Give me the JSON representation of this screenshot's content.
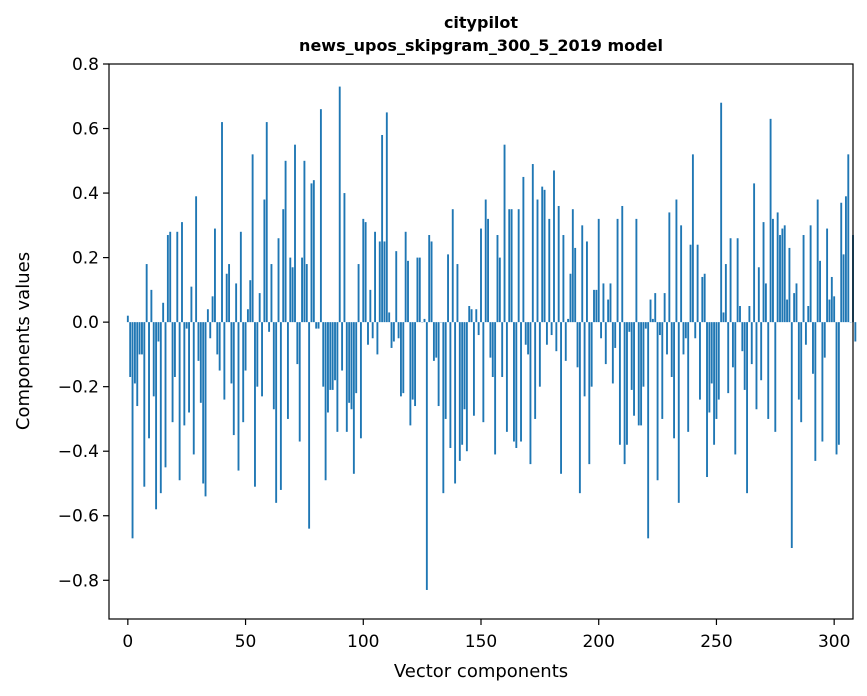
{
  "chart_data": {
    "type": "bar",
    "title": "citypilot",
    "subtitle": "news_upos_skipgram_300_5_2019 model",
    "xlabel": "Vector components",
    "ylabel": "Components values",
    "xlim": [
      -8,
      308
    ],
    "ylim": [
      -0.92,
      0.8
    ],
    "xticks": [
      0,
      50,
      100,
      150,
      200,
      250,
      300
    ],
    "yticks": [
      -0.8,
      -0.6,
      -0.4,
      -0.2,
      0.0,
      0.2,
      0.4,
      0.6,
      0.8
    ],
    "ytick_labels": [
      "−0.8",
      "−0.6",
      "−0.4",
      "−0.2",
      "0.0",
      "0.2",
      "0.4",
      "0.6",
      "0.8"
    ],
    "xtick_labels": [
      "0",
      "50",
      "100",
      "150",
      "200",
      "250",
      "300"
    ],
    "bar_color": "#1f77b4",
    "grid": false,
    "values": [
      0.02,
      -0.17,
      -0.67,
      -0.19,
      -0.26,
      -0.1,
      -0.1,
      -0.51,
      0.18,
      -0.36,
      0.1,
      -0.23,
      -0.58,
      -0.06,
      -0.53,
      0.06,
      -0.45,
      0.27,
      0.28,
      -0.31,
      -0.17,
      0.28,
      -0.49,
      0.31,
      -0.32,
      -0.02,
      -0.28,
      0.11,
      -0.41,
      0.39,
      -0.12,
      -0.25,
      -0.5,
      -0.54,
      0.04,
      -0.05,
      0.08,
      0.29,
      -0.1,
      -0.15,
      0.62,
      -0.24,
      0.15,
      0.18,
      -0.19,
      -0.35,
      0.12,
      -0.46,
      0.28,
      -0.31,
      -0.15,
      0.04,
      0.13,
      0.52,
      -0.51,
      -0.2,
      0.09,
      -0.23,
      0.38,
      0.62,
      -0.03,
      0.18,
      -0.27,
      -0.56,
      0.26,
      -0.52,
      0.35,
      0.5,
      -0.3,
      0.2,
      0.17,
      0.55,
      -0.13,
      -0.37,
      0.2,
      0.5,
      0.18,
      -0.64,
      0.43,
      0.44,
      -0.02,
      -0.02,
      0.66,
      -0.2,
      -0.49,
      -0.28,
      -0.21,
      -0.21,
      -0.18,
      -0.34,
      0.73,
      -0.15,
      0.4,
      -0.34,
      -0.25,
      -0.27,
      -0.47,
      -0.22,
      0.18,
      -0.36,
      0.32,
      0.31,
      -0.07,
      0.1,
      -0.05,
      0.28,
      -0.1,
      0.25,
      0.58,
      0.25,
      0.65,
      0.03,
      -0.08,
      -0.06,
      0.22,
      -0.05,
      -0.23,
      -0.22,
      0.28,
      0.19,
      -0.32,
      -0.24,
      -0.26,
      0.2,
      0.2,
      0.0,
      0.01,
      -0.83,
      0.27,
      0.25,
      -0.12,
      -0.11,
      -0.26,
      0.0,
      -0.53,
      -0.3,
      0.21,
      -0.39,
      0.35,
      -0.5,
      0.18,
      -0.43,
      -0.38,
      -0.27,
      -0.4,
      0.05,
      0.04,
      -0.29,
      0.04,
      -0.04,
      0.29,
      -0.31,
      0.38,
      0.32,
      -0.11,
      -0.17,
      -0.41,
      0.27,
      0.2,
      -0.17,
      0.55,
      -0.34,
      0.35,
      0.35,
      -0.37,
      -0.39,
      0.35,
      -0.37,
      0.45,
      -0.07,
      -0.1,
      -0.44,
      0.49,
      -0.3,
      0.38,
      -0.2,
      0.42,
      0.41,
      -0.07,
      0.32,
      -0.04,
      0.47,
      -0.09,
      0.36,
      -0.47,
      0.27,
      -0.12,
      0.01,
      0.15,
      0.35,
      0.23,
      -0.14,
      -0.53,
      0.3,
      -0.23,
      0.25,
      -0.44,
      -0.2,
      0.1,
      0.1,
      0.32,
      -0.05,
      0.12,
      -0.13,
      0.07,
      0.12,
      -0.19,
      -0.08,
      0.32,
      -0.38,
      0.36,
      -0.44,
      -0.38,
      -0.03,
      -0.21,
      -0.29,
      0.32,
      -0.32,
      -0.32,
      -0.2,
      -0.02,
      -0.67,
      0.07,
      0.01,
      0.09,
      -0.49,
      -0.04,
      -0.3,
      0.09,
      -0.1,
      0.34,
      -0.17,
      -0.36,
      0.38,
      -0.56,
      0.3,
      -0.1,
      -0.05,
      -0.34,
      0.24,
      0.52,
      -0.05,
      0.24,
      -0.24,
      0.14,
      0.15,
      -0.48,
      -0.28,
      -0.19,
      -0.38,
      -0.3,
      -0.24,
      0.68,
      0.03,
      0.18,
      -0.22,
      0.26,
      -0.14,
      -0.41,
      0.26,
      0.05,
      -0.09,
      -0.21,
      -0.53,
      0.05,
      -0.13,
      0.43,
      -0.27,
      0.17,
      -0.18,
      0.31,
      0.12,
      -0.3,
      0.63,
      0.32,
      -0.34,
      0.34,
      0.27,
      0.29,
      0.3,
      0.07,
      0.23,
      -0.7,
      0.09,
      0.12,
      -0.24,
      -0.31,
      0.27,
      -0.07,
      0.05,
      0.3,
      -0.16,
      -0.43,
      0.38,
      0.19,
      -0.37,
      -0.11,
      0.29,
      0.07,
      0.14,
      0.08,
      -0.41,
      -0.38,
      0.37,
      0.21,
      0.39,
      0.52,
      0.0,
      0.27,
      -0.06
    ]
  }
}
